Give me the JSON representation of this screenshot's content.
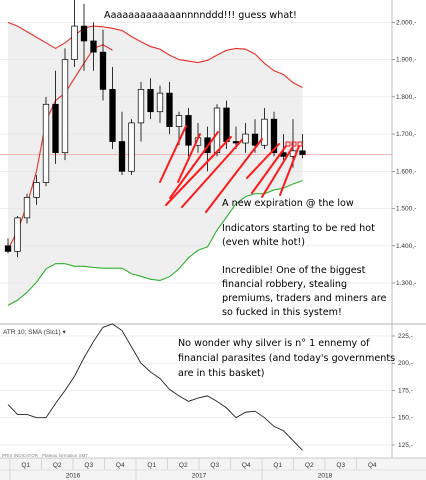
{
  "chart_data": [
    {
      "type": "candlestick",
      "panel": "price",
      "instrument": "Silver",
      "timeframe": "monthly",
      "y_ticks": [
        1300,
        1400,
        1500,
        1600,
        1700,
        1800,
        1900,
        2000
      ],
      "y_tick_labels": [
        "1.300,-",
        "1.400,-",
        "1.500,-",
        "1.600,-",
        "1.700,-",
        "1.800,-",
        "1.900,-",
        "2.000,-"
      ],
      "ylim": [
        1190,
        2060
      ],
      "last_price_line": 1645,
      "candles": [
        {
          "o": 1400,
          "h": 1420,
          "l": 1380,
          "c": 1385
        },
        {
          "o": 1385,
          "h": 1480,
          "l": 1370,
          "c": 1475
        },
        {
          "o": 1475,
          "h": 1540,
          "l": 1460,
          "c": 1530
        },
        {
          "o": 1530,
          "h": 1590,
          "l": 1510,
          "c": 1570
        },
        {
          "o": 1570,
          "h": 1800,
          "l": 1560,
          "c": 1780
        },
        {
          "o": 1780,
          "h": 1870,
          "l": 1620,
          "c": 1650
        },
        {
          "o": 1650,
          "h": 1930,
          "l": 1630,
          "c": 1900
        },
        {
          "o": 1900,
          "h": 2080,
          "l": 1880,
          "c": 1990
        },
        {
          "o": 1990,
          "h": 2050,
          "l": 1870,
          "c": 1950
        },
        {
          "o": 1950,
          "h": 2000,
          "l": 1870,
          "c": 1920
        },
        {
          "o": 1920,
          "h": 1980,
          "l": 1790,
          "c": 1820
        },
        {
          "o": 1820,
          "h": 1880,
          "l": 1660,
          "c": 1680
        },
        {
          "o": 1680,
          "h": 1760,
          "l": 1590,
          "c": 1600
        },
        {
          "o": 1600,
          "h": 1740,
          "l": 1590,
          "c": 1730
        },
        {
          "o": 1730,
          "h": 1840,
          "l": 1680,
          "c": 1820
        },
        {
          "o": 1820,
          "h": 1850,
          "l": 1740,
          "c": 1760
        },
        {
          "o": 1760,
          "h": 1830,
          "l": 1730,
          "c": 1810
        },
        {
          "o": 1810,
          "h": 1840,
          "l": 1700,
          "c": 1720
        },
        {
          "o": 1720,
          "h": 1760,
          "l": 1670,
          "c": 1750
        },
        {
          "o": 1750,
          "h": 1770,
          "l": 1640,
          "c": 1670
        },
        {
          "o": 1670,
          "h": 1730,
          "l": 1650,
          "c": 1690
        },
        {
          "o": 1690,
          "h": 1720,
          "l": 1600,
          "c": 1650
        },
        {
          "o": 1650,
          "h": 1780,
          "l": 1640,
          "c": 1770
        },
        {
          "o": 1770,
          "h": 1790,
          "l": 1660,
          "c": 1680
        },
        {
          "o": 1680,
          "h": 1720,
          "l": 1660,
          "c": 1676
        },
        {
          "o": 1676,
          "h": 1730,
          "l": 1650,
          "c": 1700
        },
        {
          "o": 1700,
          "h": 1740,
          "l": 1650,
          "c": 1670
        },
        {
          "o": 1670,
          "h": 1770,
          "l": 1660,
          "c": 1740
        },
        {
          "o": 1740,
          "h": 1760,
          "l": 1640,
          "c": 1650
        },
        {
          "o": 1650,
          "h": 1700,
          "l": 1630,
          "c": 1640
        },
        {
          "o": 1640,
          "h": 1740,
          "l": 1610,
          "c": 1655
        },
        {
          "o": 1655,
          "h": 1700,
          "l": 1635,
          "c": 1645
        }
      ],
      "upper_band": [
        2000,
        1990,
        1975,
        1960,
        1945,
        1930,
        1945,
        1965,
        1985,
        1990,
        1988,
        1984,
        1978,
        1962,
        1948,
        1935,
        1928,
        1912,
        1900,
        1896,
        1892,
        1898,
        1912,
        1925,
        1930,
        1928,
        1915,
        1890,
        1870,
        1860,
        1838,
        1825
      ],
      "lower_band": [
        1240,
        1254,
        1275,
        1302,
        1338,
        1352,
        1352,
        1345,
        1345,
        1342,
        1340,
        1340,
        1340,
        1325,
        1318,
        1310,
        1307,
        1317,
        1338,
        1368,
        1388,
        1397,
        1442,
        1477,
        1513,
        1532,
        1540,
        1540,
        1550,
        1555,
        1566,
        1575
      ],
      "middle_line": [
        1390,
        1440,
        1510,
        1600,
        1735,
        1790,
        1810,
        1850,
        1890,
        1930,
        1940,
        1925
      ],
      "annotations": [
        {
          "id": "headline",
          "text": "Aaaaaaaaaaaaannnnddd!!! guess what!"
        },
        {
          "id": "a1",
          "text": "A new expiration @ the low"
        },
        {
          "id": "a2a",
          "text": "Indicators starting to be red hot"
        },
        {
          "id": "a2b",
          "text": "(even white hot!)"
        },
        {
          "id": "a3a",
          "text": "Incredible! One of the biggest"
        },
        {
          "id": "a3b",
          "text": "financial robbery, stealing"
        },
        {
          "id": "a3c",
          "text": "premiums, traders and miners are"
        },
        {
          "id": "a3d",
          "text": "so fucked in this system!"
        }
      ]
    },
    {
      "type": "line",
      "panel": "indicator",
      "title": "ATR 10; SMA (Slc1) ▾",
      "y_ticks": [
        125,
        150,
        175,
        200,
        225
      ],
      "y_tick_labels": [
        "125,-",
        "150,-",
        "175,-",
        "200,-",
        "225,-"
      ],
      "ylim": [
        113,
        236
      ],
      "values": [
        162,
        153,
        153,
        150,
        150,
        163,
        175,
        188,
        205,
        220,
        233,
        236,
        230,
        215,
        200,
        192,
        186,
        176,
        170,
        165,
        168,
        170,
        165,
        159,
        150,
        155,
        156,
        150,
        142,
        138,
        129,
        120
      ],
      "annotations": [
        {
          "id": "b1",
          "text": "No wonder why silver is n° 1 ennemy of"
        },
        {
          "id": "b2",
          "text": "financial parasites (and today's governments"
        },
        {
          "id": "b3",
          "text": "are in this basket)"
        }
      ],
      "footer_text": "PRIX INDICATOR · Plateau formation SMT"
    }
  ],
  "x_axis": {
    "quarters": [
      "Q1",
      "Q2",
      "Q3",
      "Q4",
      "Q1",
      "Q2",
      "Q3",
      "Q4",
      "Q1",
      "Q2",
      "Q3",
      "Q4"
    ],
    "years": [
      "2016",
      "2017",
      "2018"
    ]
  },
  "colors": {
    "up_candle": "#ffffff",
    "down_candle": "#000000",
    "upper_band": "#e8302a",
    "lower_band": "#2fb12f",
    "band_fill": "#efefef",
    "annotation_marks": "#ff1a1a",
    "last_price_line": "#f2b0b0"
  }
}
